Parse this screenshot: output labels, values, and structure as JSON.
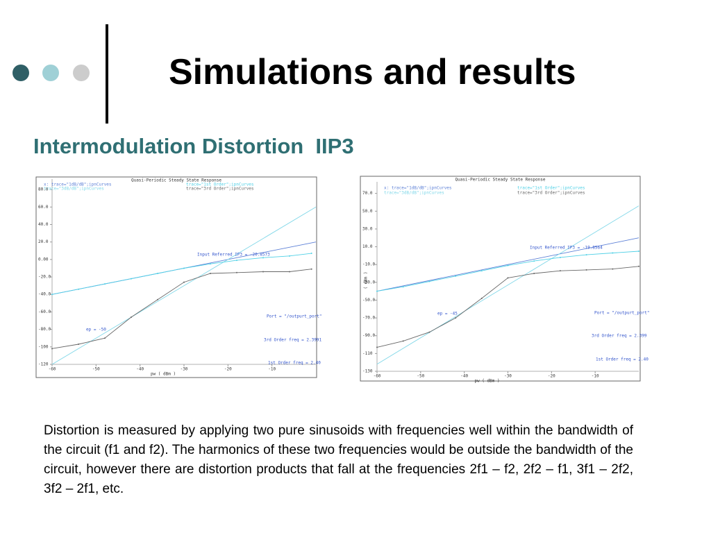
{
  "header": {
    "title": "Simulations and results",
    "subtitle": "Intermodulation Distortion  IIP3"
  },
  "chart_data": [
    {
      "type": "line",
      "title": "Quasi-Periodic Steady State Response",
      "x_label": "pw ( dBm )",
      "xlim": [
        -60,
        0
      ],
      "ylim": [
        -120,
        92
      ],
      "xticks": [
        -60,
        -50,
        -40,
        -30,
        -20,
        -10
      ],
      "yticks": [
        {
          "value": -120,
          "label": "-120"
        },
        {
          "value": -100,
          "label": "-100"
        },
        {
          "value": -80,
          "label": "-80.0"
        },
        {
          "value": -60,
          "label": "-60.0"
        },
        {
          "value": -40,
          "label": "-40.0"
        },
        {
          "value": -20,
          "label": "-20.0"
        },
        {
          "value": 0,
          "label": "0.00"
        },
        {
          "value": 20,
          "label": "20.0"
        },
        {
          "value": 40,
          "label": "40.0"
        },
        {
          "value": 60,
          "label": "60.0"
        },
        {
          "value": 80,
          "label": "80.0"
        }
      ],
      "series": [
        {
          "name": "x: trace=\"1dB/dB\";ipnCurves",
          "color": "#5b7fd6",
          "x": [
            -60,
            0
          ],
          "values": [
            -40,
            20
          ]
        },
        {
          "name": "trace=\"3dB/dB\";ipnCurves",
          "color": "#7fd7e8",
          "x": [
            -60,
            0
          ],
          "values": [
            -120,
            60
          ]
        },
        {
          "name": "trace=\"1st Order\";ipnCurves",
          "color": "#4fd0e6",
          "x": [
            -60,
            -54,
            -48,
            -42,
            -36,
            -30,
            -24,
            -18,
            -12,
            -6,
            -1
          ],
          "values": [
            -40,
            -34,
            -28,
            -22,
            -16,
            -10,
            -5,
            -1,
            2,
            4,
            7
          ]
        },
        {
          "name": "trace=\"3rd Order\";ipnCurves",
          "color": "#666666",
          "x": [
            -60,
            -54,
            -48,
            -42,
            -36,
            -30,
            -24,
            -18,
            -12,
            -6,
            -1
          ],
          "values": [
            -102,
            -97,
            -90,
            -66,
            -46,
            -26,
            -16,
            -15,
            -14,
            -14,
            -11
          ]
        }
      ],
      "annotations": [
        "Input Referred IP3 = -20.8573",
        "ep = -50",
        "Port = \"/outpurt_port\"",
        "3rd Order freq = 2.3991",
        "1st Order freq = 2.40"
      ]
    },
    {
      "type": "line",
      "title": "Quasi-Periodic Steady State Response",
      "x_label": "pw ( dBm )",
      "y_label": "( dBm )",
      "xlim": [
        -60,
        0
      ],
      "ylim": [
        -130,
        83
      ],
      "xticks": [
        -60,
        -50,
        -40,
        -30,
        -20,
        -10
      ],
      "yticks": [
        {
          "value": -130,
          "label": "-130"
        },
        {
          "value": -110,
          "label": "-110"
        },
        {
          "value": -90,
          "label": "-90.0"
        },
        {
          "value": -70,
          "label": "-70.0"
        },
        {
          "value": -50,
          "label": "-50.0"
        },
        {
          "value": -30,
          "label": "-30.0"
        },
        {
          "value": -10,
          "label": "-10.0"
        },
        {
          "value": 10,
          "label": "10.0"
        },
        {
          "value": 30,
          "label": "30.0"
        },
        {
          "value": 50,
          "label": "50.0"
        },
        {
          "value": 70,
          "label": "70.0"
        }
      ],
      "series": [
        {
          "name": "x: trace=\"1dB/dB\";ipnCurves",
          "color": "#5b7fd6",
          "x": [
            -60,
            0
          ],
          "values": [
            -40,
            20
          ]
        },
        {
          "name": "trace=\"3dB/dB\";ipnCurves",
          "color": "#7fd7e8",
          "x": [
            -60,
            0
          ],
          "values": [
            -122,
            56
          ]
        },
        {
          "name": "trace=\"1st Order\";ipnCurves",
          "color": "#4fd0e6",
          "x": [
            -60,
            -54,
            -48,
            -42,
            -36,
            -30,
            -24,
            -18,
            -12,
            -6,
            0
          ],
          "values": [
            -40,
            -35,
            -29,
            -23,
            -17,
            -11,
            -6,
            -2,
            1,
            3,
            5
          ]
        },
        {
          "name": "trace=\"3rd Order\";ipnCurves",
          "color": "#666666",
          "x": [
            -60,
            -54,
            -48,
            -42,
            -36,
            -30,
            -24,
            -18,
            -12,
            -6,
            0
          ],
          "values": [
            -103,
            -96,
            -86,
            -70,
            -48,
            -25,
            -20,
            -17,
            -16,
            -15,
            -12
          ]
        }
      ],
      "annotations": [
        "Input Referred IP3 = -19.8564",
        "ep = -45",
        "Port = \"/outpurt_port\"",
        "3rd Order freq = 2.399",
        "1st Order freq = 2.40"
      ]
    }
  ],
  "body": "Distortion is measured by applying two pure sinusoids with frequencies well within the bandwidth of the circuit (f1 and f2). The harmonics of these two frequencies would be outside the bandwidth of the circuit, however there are distortion products that fall at the frequencies 2f1 – f2, 2f2 – f1, 3f1 – 2f2, 3f2 – 2f1, etc."
}
